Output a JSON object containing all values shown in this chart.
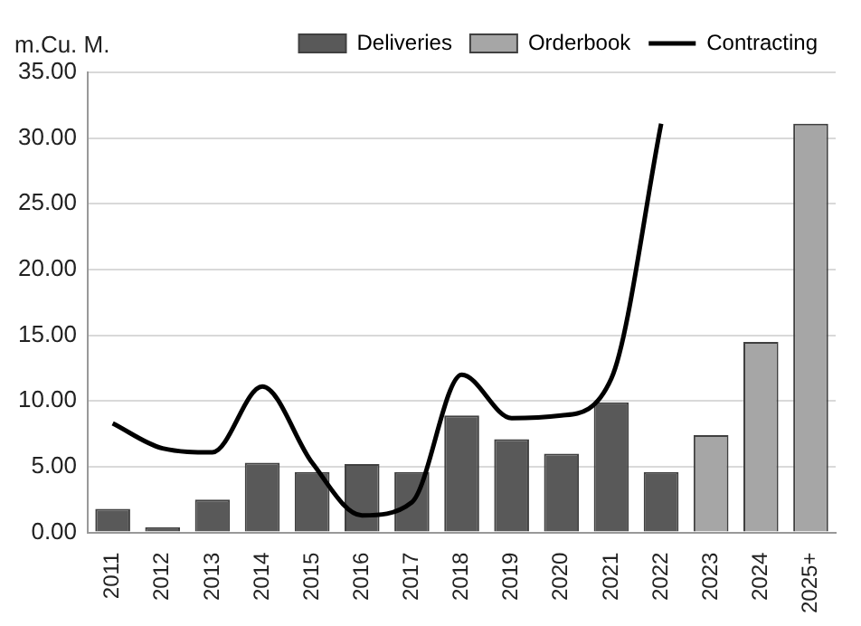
{
  "chart_data": {
    "type": "bar",
    "ylabel": "m.Cu. M.",
    "categories": [
      "2011",
      "2012",
      "2013",
      "2014",
      "2015",
      "2016",
      "2017",
      "2018",
      "2019",
      "2020",
      "2021",
      "2022",
      "2023",
      "2024",
      "2025+"
    ],
    "series": [
      {
        "name": "Deliveries",
        "color": "#595959",
        "values": [
          1.8,
          0.4,
          2.5,
          5.3,
          4.6,
          5.2,
          4.6,
          8.9,
          7.1,
          6.0,
          9.9,
          4.6,
          null,
          null,
          null
        ]
      },
      {
        "name": "Orderbook",
        "color": "#a6a6a6",
        "values": [
          null,
          null,
          null,
          null,
          null,
          null,
          null,
          null,
          null,
          null,
          null,
          null,
          7.4,
          14.5,
          31.1
        ]
      },
      {
        "name": "Contracting",
        "type": "line",
        "color": "#000000",
        "values": [
          8.3,
          6.4,
          6.1,
          11.1,
          5.3,
          1.3,
          2.3,
          12.0,
          8.7,
          8.9,
          11.7,
          31.1,
          null,
          null,
          null
        ]
      }
    ],
    "ylim": [
      0,
      35
    ],
    "yticks": [
      {
        "value": 0,
        "label": "0.00"
      },
      {
        "value": 5,
        "label": "5.00"
      },
      {
        "value": 10,
        "label": "10.00"
      },
      {
        "value": 15,
        "label": "15.00"
      },
      {
        "value": 20,
        "label": "20.00"
      },
      {
        "value": 25,
        "label": "25.00"
      },
      {
        "value": 30,
        "label": "30.00"
      },
      {
        "value": 35,
        "label": "35.00"
      }
    ],
    "grid": "y",
    "legend": "top right",
    "marker": "none",
    "line_style": "solid"
  }
}
